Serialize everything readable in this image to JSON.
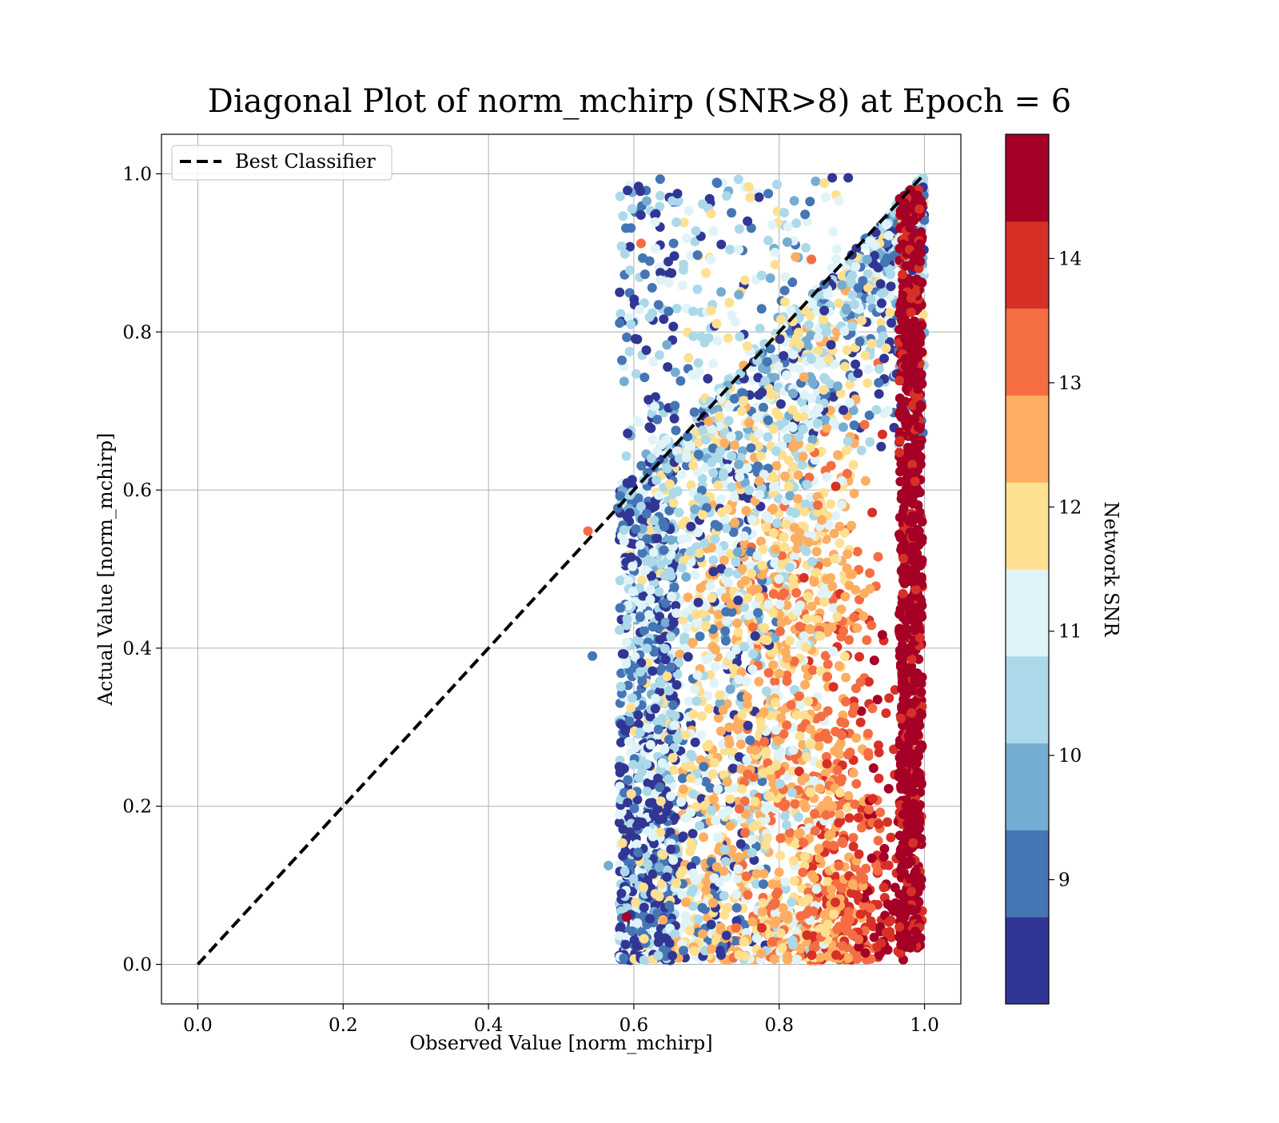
{
  "chart_data": {
    "type": "scatter",
    "title": "Diagonal Plot of norm_mchirp (SNR>8) at Epoch = 6",
    "xlabel": "Observed Value [norm_mchirp]",
    "ylabel": "Actual Value [norm_mchirp]",
    "xlim": [
      -0.05,
      1.05
    ],
    "ylim": [
      -0.05,
      1.05
    ],
    "xticks": [
      "0.0",
      "0.2",
      "0.4",
      "0.6",
      "0.8",
      "1.0"
    ],
    "yticks": [
      "0.0",
      "0.2",
      "0.4",
      "0.6",
      "0.8",
      "1.0"
    ],
    "grid": true,
    "legend": {
      "placement": "upper-left",
      "entries": [
        {
          "label": "Best Classifier",
          "style": "dashed",
          "color": "#000000"
        }
      ]
    },
    "reference_line": {
      "x": [
        0.0,
        1.0
      ],
      "y": [
        0.0,
        1.0
      ]
    },
    "colorbar": {
      "label": "Network SNR",
      "range": [
        8,
        15
      ],
      "tick_values": [
        9,
        10,
        11,
        12,
        13,
        14
      ],
      "tick_labels": [
        "9",
        "10",
        "11",
        "12",
        "13",
        "14"
      ],
      "colors": [
        "#313695",
        "#4575b4",
        "#74add1",
        "#abd9e9",
        "#e0f3f8",
        "#fee090",
        "#fdae61",
        "#f46d43",
        "#d73027",
        "#a50026"
      ]
    },
    "sample_points": [
      {
        "x": 0.543,
        "y": 0.39,
        "snr": 9.2
      },
      {
        "x": 0.537,
        "y": 0.548,
        "snr": 13.3
      },
      {
        "x": 0.565,
        "y": 0.125,
        "snr": 9.4
      },
      {
        "x": 0.578,
        "y": 0.577,
        "snr": 9.3
      },
      {
        "x": 0.609,
        "y": 0.978,
        "snr": 8.3
      },
      {
        "x": 0.61,
        "y": 0.912,
        "snr": 13.5
      },
      {
        "x": 0.66,
        "y": 0.975,
        "snr": 8.3
      },
      {
        "x": 0.744,
        "y": 0.993,
        "snr": 10.3
      },
      {
        "x": 0.785,
        "y": 0.975,
        "snr": 9.1
      },
      {
        "x": 0.873,
        "y": 0.995,
        "snr": 8.3
      },
      {
        "x": 0.895,
        "y": 0.995,
        "snr": 8.3
      },
      {
        "x": 0.58,
        "y": 0.25,
        "snr": 8.4
      },
      {
        "x": 0.59,
        "y": 0.06,
        "snr": 14.6
      },
      {
        "x": 0.72,
        "y": 0.012,
        "snr": 8.4
      },
      {
        "x": 0.76,
        "y": 0.97,
        "snr": 11.7
      }
    ]
  }
}
